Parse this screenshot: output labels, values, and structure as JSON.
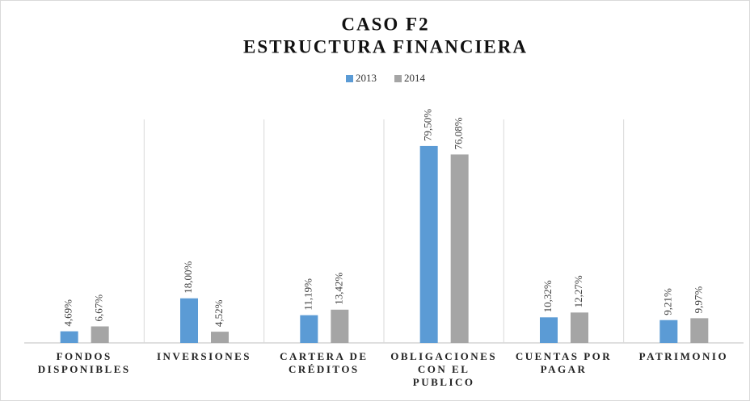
{
  "chart_data": {
    "type": "bar",
    "title": "CASO F2",
    "subtitle": "ESTRUCTURA FINANCIERA",
    "categories": [
      "FONDOS DISPONIBLES",
      "INVERSIONES",
      "CARTERA DE CRÉDITOS",
      "OBLIGACIONES CON EL PUBLICO",
      "CUENTAS POR PAGAR",
      "PATRIMONIO"
    ],
    "series": [
      {
        "name": "2013",
        "color": "#5b9bd5",
        "values": [
          4.69,
          18.0,
          11.19,
          79.5,
          10.32,
          9.21
        ],
        "value_labels": [
          "4,69%",
          "18,00%",
          "11,19%",
          "79,50%",
          "10,32%",
          "9,21%"
        ]
      },
      {
        "name": "2014",
        "color": "#a5a5a5",
        "values": [
          6.67,
          4.52,
          13.42,
          76.08,
          12.27,
          9.97
        ],
        "value_labels": [
          "6,67%",
          "4,52%",
          "13,42%",
          "76,08%",
          "12,27%",
          "9,97%"
        ]
      }
    ],
    "legend": "top"
  }
}
